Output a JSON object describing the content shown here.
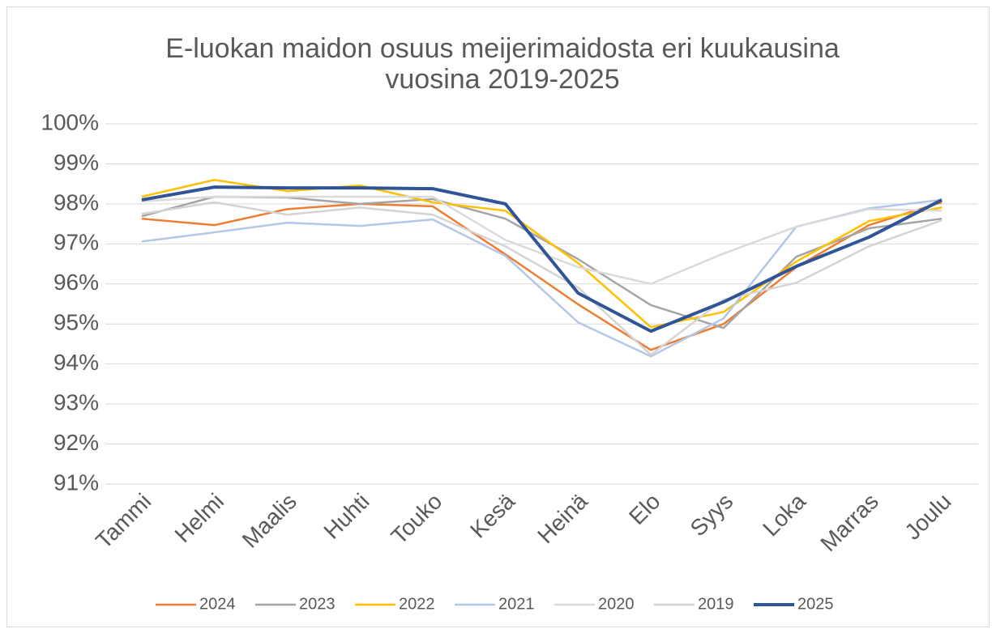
{
  "chart_data": {
    "type": "line",
    "title": [
      "E-luokan maidon osuus meijerimaidosta eri kuukausina",
      "vuosina 2019-2025"
    ],
    "categories": [
      "Tammi",
      "Helmi",
      "Maalis",
      "Huhti",
      "Touko",
      "Kesä",
      "Heinä",
      "Elo",
      "Syys",
      "Loka",
      "Marras",
      "Joulu"
    ],
    "series": [
      {
        "name": "2024",
        "color": "#ed7d31",
        "line_width": 2.5,
        "values": [
          97.63,
          97.47,
          97.87,
          98.0,
          97.94,
          96.74,
          95.49,
          94.35,
          95.0,
          96.42,
          97.47,
          98.04
        ]
      },
      {
        "name": "2023",
        "color": "#a5a5a5",
        "line_width": 2.5,
        "values": [
          97.69,
          98.18,
          98.16,
          98.0,
          98.12,
          97.63,
          96.62,
          95.47,
          94.9,
          96.68,
          97.39,
          97.63
        ]
      },
      {
        "name": "2022",
        "color": "#ffc000",
        "line_width": 2.5,
        "values": [
          98.18,
          98.6,
          98.32,
          98.46,
          98.04,
          97.83,
          96.52,
          94.92,
          95.3,
          96.56,
          97.57,
          97.91
        ]
      },
      {
        "name": "2021",
        "color": "#b4c7e7",
        "line_width": 2.5,
        "values": [
          97.06,
          97.29,
          97.53,
          97.45,
          97.61,
          96.7,
          95.04,
          94.19,
          95.14,
          97.43,
          97.89,
          98.1
        ]
      },
      {
        "name": "2020",
        "color": "#dadada",
        "line_width": 2.5,
        "values": [
          98.06,
          98.18,
          98.18,
          98.18,
          98.18,
          97.1,
          96.42,
          96.0,
          96.76,
          97.43,
          97.87,
          97.83
        ]
      },
      {
        "name": "2019",
        "color": "#d4d4d4",
        "line_width": 2.5,
        "values": [
          97.75,
          98.04,
          97.73,
          97.91,
          97.73,
          96.94,
          95.91,
          94.23,
          95.61,
          96.03,
          96.94,
          97.59
        ]
      },
      {
        "name": "2025",
        "color": "#2f5597",
        "line_width": 4,
        "values": [
          98.1,
          98.42,
          98.4,
          98.4,
          98.38,
          98.0,
          95.77,
          94.82,
          95.55,
          96.44,
          97.17,
          98.1
        ]
      }
    ],
    "ylim": [
      91,
      100
    ],
    "yticks": [
      {
        "value": 91,
        "label": "91%"
      },
      {
        "value": 92,
        "label": "92%"
      },
      {
        "value": 93,
        "label": "93%"
      },
      {
        "value": 94,
        "label": "94%"
      },
      {
        "value": 95,
        "label": "95%"
      },
      {
        "value": 96,
        "label": "96%"
      },
      {
        "value": 97,
        "label": "97%"
      },
      {
        "value": 98,
        "label": "98%"
      },
      {
        "value": 99,
        "label": "99%"
      },
      {
        "value": 100,
        "label": "100%"
      }
    ],
    "grid": true,
    "legend": "bottom"
  }
}
